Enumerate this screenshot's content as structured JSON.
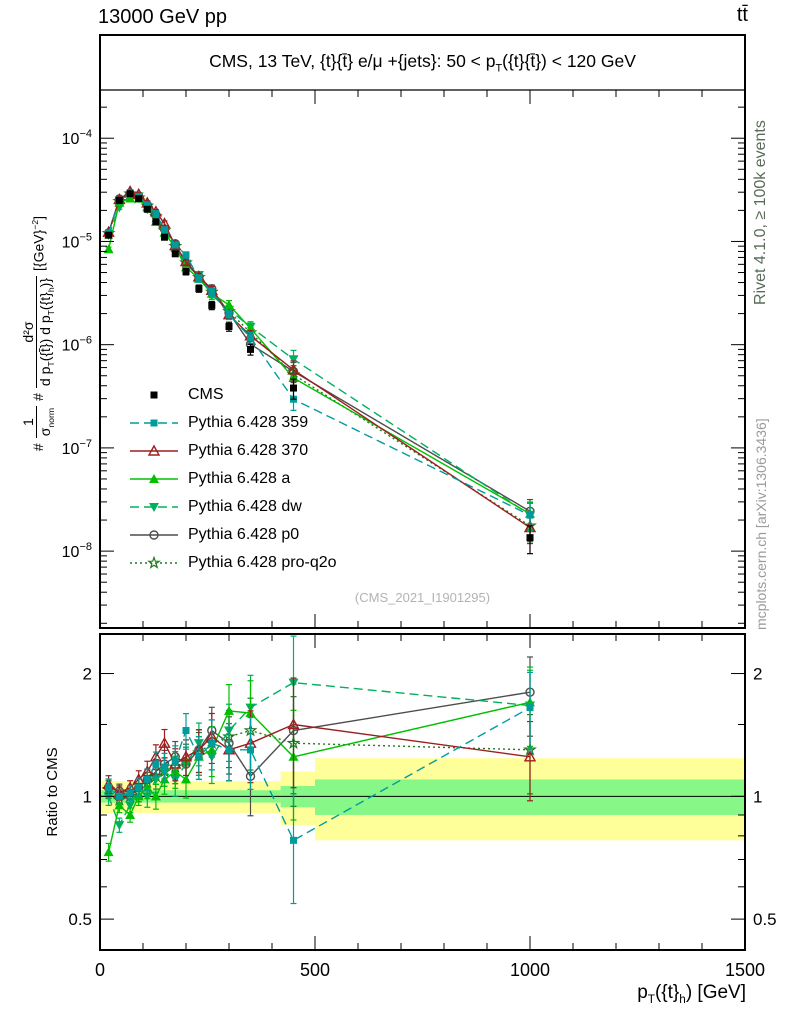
{
  "header": {
    "left": "13000 GeV pp",
    "right": "tt̄"
  },
  "title": {
    "pre": "CMS, 13 TeV, {t}{t̄} e/μ +{jets}: 50 < p",
    "sub": "T",
    "post": "({t}{t̄}) < 120 GeV"
  },
  "side": {
    "top": "Rivet 4.1.0, ≥ 100k events",
    "bottom": "mcplots.cern.ch [arXiv:1306.3436]"
  },
  "watermark": "(CMS_2021_I1901295)",
  "colors": {
    "band_yellow": "#ffff99",
    "band_green": "#87f787",
    "frame": "#000000"
  },
  "axes": {
    "ratio_label": "Ratio to CMS",
    "x_label": {
      "pre": "p",
      "sub1": "T",
      "mid": "({t}",
      "sub2": "h",
      "post": ") [GeV]"
    },
    "y_label": {
      "hash1": "#",
      "num1": "1",
      "den1_base": "σ",
      "den1_sub": "norm",
      "hash2": "#",
      "num2": "d²σ",
      "den2_a": "d p",
      "den2_sub_a": "T",
      "den2_b": "({t̄}) d p",
      "den2_sub_b": "T",
      "den2_c": "({t}",
      "den2_sub_c": "h",
      "den2_d": ")}",
      "unit_pre": "[{GeV}",
      "unit_sup": "−2",
      "unit_post": "]"
    }
  },
  "chart_data": [
    {
      "type": "line",
      "title": "CMS, 13 TeV, {t}{t̄} e/μ +{jets}: 50 < pT({t}{t̄}) < 120 GeV",
      "xlabel": "pT({t}h) [GeV]",
      "ylabel": "1/σnorm d²σ/(d pT({t̄}) d pT({t}h)) [GeV⁻²]",
      "xlim": [
        0,
        1500
      ],
      "ylim": [
        1.8e-09,
        0.001
      ],
      "ylog": true,
      "legend_position": "middle-left",
      "x": [
        20,
        45,
        70,
        90,
        110,
        130,
        150,
        175,
        200,
        230,
        260,
        300,
        350,
        450,
        1000
      ],
      "xticks": [
        {
          "v": 0,
          "label": "0"
        },
        {
          "v": 500,
          "label": "500"
        },
        {
          "v": 1000,
          "label": "1000"
        },
        {
          "v": 1500,
          "label": "1500"
        }
      ],
      "yticks": [
        {
          "v": 0.0001,
          "exp": "−4"
        },
        {
          "v": 1e-05,
          "exp": "−5"
        },
        {
          "v": 1e-06,
          "exp": "−6"
        },
        {
          "v": 1e-07,
          "exp": "−7"
        },
        {
          "v": 1e-08,
          "exp": "−8"
        }
      ],
      "frac_err": [
        0.05,
        0.04,
        0.04,
        0.04,
        0.05,
        0.05,
        0.06,
        0.06,
        0.07,
        0.08,
        0.09,
        0.1,
        0.12,
        0.22,
        0.3
      ],
      "series": [
        {
          "name": "CMS",
          "color": "#000000",
          "marker": "square-filled",
          "line": "none",
          "values": [
            1.15e-05,
            2.5e-05,
            2.9e-05,
            2.6e-05,
            2.05e-05,
            1.55e-05,
            1.1e-05,
            7.6e-06,
            5.1e-06,
            3.5e-06,
            2.4e-06,
            1.5e-06,
            9e-07,
            3.8e-07,
            1.35e-08
          ]
        },
        {
          "name": "Pythia 6.428 359",
          "color": "#009c9c",
          "marker": "square-filled",
          "line": "dashed",
          "values": [
            1.21e-05,
            2.5e-05,
            2.96e-05,
            2.73e-05,
            2.26e-05,
            1.86e-05,
            1.3e-05,
            9.27e-06,
            7.4e-06,
            4.38e-06,
            3.24e-06,
            1.95e-06,
            1.17e-06,
            2.96e-07,
            2.23e-08
          ],
          "ratio": [
            1.05,
            1.0,
            1.02,
            1.05,
            1.1,
            1.2,
            1.18,
            1.22,
            1.45,
            1.25,
            1.35,
            1.3,
            1.3,
            0.78,
            1.65
          ]
        },
        {
          "name": "Pythia 6.428 370",
          "color": "#9c1f1f",
          "marker": "triangle-open",
          "line": "solid",
          "values": [
            1.23e-05,
            2.55e-05,
            3.05e-05,
            2.86e-05,
            2.36e-05,
            1.94e-05,
            1.49e-05,
            9.12e-06,
            6.38e-06,
            4.55e-06,
            3.36e-06,
            1.95e-06,
            1.22e-06,
            5.7e-07,
            1.69e-08
          ],
          "ratio": [
            1.07,
            1.02,
            1.05,
            1.1,
            1.15,
            1.25,
            1.35,
            1.2,
            1.25,
            1.3,
            1.4,
            1.3,
            1.35,
            1.5,
            1.25
          ]
        },
        {
          "name": "Pythia 6.428 a",
          "color": "#00c000",
          "marker": "triangle-filled",
          "line": "solid",
          "values": [
            8.4e-06,
            2.38e-05,
            2.61e-05,
            2.6e-05,
            2.15e-05,
            1.55e-05,
            1.21e-05,
            8.74e-06,
            5.61e-06,
            4.38e-06,
            3.12e-06,
            2.43e-06,
            1.44e-06,
            4.75e-07,
            2.3e-08
          ],
          "ratio": [
            0.73,
            0.95,
            0.9,
            1.0,
            1.05,
            1.0,
            1.1,
            1.15,
            1.1,
            1.25,
            1.3,
            1.62,
            1.6,
            1.25,
            1.7
          ]
        },
        {
          "name": "Pythia 6.428 dw",
          "color": "#00b060",
          "marker": "triangle-down-filled",
          "line": "dashed",
          "values": [
            1.15e-05,
            2.13e-05,
            2.76e-05,
            2.73e-05,
            2.05e-05,
            1.71e-05,
            1.27e-05,
            8.36e-06,
            6.12e-06,
            4.73e-06,
            3e-06,
            2.18e-06,
            1.49e-06,
            7.22e-07,
            2.25e-08
          ],
          "ratio": [
            1.0,
            0.85,
            0.95,
            1.05,
            1.0,
            1.1,
            1.15,
            1.1,
            1.2,
            1.35,
            1.25,
            1.45,
            1.65,
            1.9,
            1.67
          ]
        },
        {
          "name": "Pythia 6.428 p0",
          "color": "#4d4d4d",
          "marker": "circle-open",
          "line": "solid",
          "values": [
            1.21e-05,
            2.58e-05,
            2.9e-05,
            2.73e-05,
            2.26e-05,
            1.78e-05,
            1.32e-05,
            9.5e-06,
            6.12e-06,
            4.55e-06,
            3.48e-06,
            2.03e-06,
            1.01e-06,
            5.51e-07,
            2.43e-08
          ],
          "ratio": [
            1.05,
            1.03,
            1.0,
            1.05,
            1.1,
            1.15,
            1.2,
            1.25,
            1.2,
            1.3,
            1.45,
            1.35,
            1.12,
            1.45,
            1.8
          ]
        },
        {
          "name": "Pythia 6.428 pro-q2o",
          "color": "#1e7a1e",
          "marker": "star-open",
          "line": "dotted",
          "values": [
            1.2e-05,
            2.45e-05,
            2.9e-05,
            2.65e-05,
            2.21e-05,
            1.74e-05,
            1.27e-05,
            8.97e-06,
            6.22e-06,
            4.48e-06,
            3.24e-06,
            2.1e-06,
            1.31e-06,
            5.13e-07,
            1.76e-08
          ],
          "ratio": [
            1.04,
            0.98,
            1.0,
            1.02,
            1.08,
            1.12,
            1.15,
            1.18,
            1.22,
            1.28,
            1.35,
            1.4,
            1.45,
            1.35,
            1.3
          ]
        }
      ]
    },
    {
      "type": "ratio",
      "ylabel": "Ratio to CMS",
      "ylim": [
        0.42,
        2.5
      ],
      "ylog": true,
      "yticks": [
        {
          "v": 0.5,
          "label": "0.5"
        },
        {
          "v": 1,
          "label": "1"
        },
        {
          "v": 2,
          "label": "2"
        }
      ],
      "minor_yticks": [
        0.6,
        0.7,
        0.8,
        0.9,
        1.5
      ],
      "bands": [
        {
          "x0": 0,
          "x1": 420,
          "yellow": [
            0.91,
            1.09
          ],
          "green": [
            0.965,
            1.035
          ]
        },
        {
          "x0": 420,
          "x1": 500,
          "yellow": [
            0.85,
            1.15
          ],
          "green": [
            0.94,
            1.06
          ]
        },
        {
          "x0": 500,
          "x1": 1500,
          "yellow": [
            0.78,
            1.24
          ],
          "green": [
            0.9,
            1.1
          ]
        }
      ],
      "ratio_frac_err": [
        0.05,
        0.04,
        0.04,
        0.05,
        0.06,
        0.07,
        0.08,
        0.09,
        0.1,
        0.12,
        0.14,
        0.16,
        0.2,
        0.3,
        0.22
      ]
    }
  ]
}
